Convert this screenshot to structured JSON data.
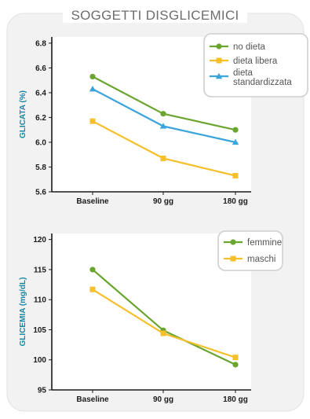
{
  "page": {
    "title": "SOGGETTI DISGLICEMICI"
  },
  "colors": {
    "green": "#6aa52f",
    "yellow": "#f6bf2c",
    "blue": "#3aa4dc",
    "axis_label": "#1b86a4",
    "tick_text": "#1c1c1c",
    "frame": "#cfcfcf",
    "panel": "#f2f2f2"
  },
  "chart_data": [
    {
      "type": "line",
      "title": "",
      "xlabel": "",
      "ylabel": "GLICATA (%)",
      "categories": [
        "Baseline",
        "90 gg",
        "180 gg"
      ],
      "ylim": [
        5.6,
        6.85
      ],
      "yticks": [
        "5.6",
        "5.8",
        "6.0",
        "6.2",
        "6.4",
        "6.6",
        "6.8"
      ],
      "grid": false,
      "legend_position": "top-right",
      "series": [
        {
          "name": "no dieta",
          "color": "#6aa52f",
          "marker": "circle",
          "values": [
            6.53,
            6.23,
            6.1
          ]
        },
        {
          "name": "dieta libera",
          "color": "#f6bf2c",
          "marker": "square",
          "values": [
            6.17,
            5.87,
            5.73
          ]
        },
        {
          "name": "dieta standardizzata",
          "legend_lines": [
            "dieta",
            "standardizzata"
          ],
          "color": "#3aa4dc",
          "marker": "triangle",
          "values": [
            6.43,
            6.13,
            6.0
          ]
        }
      ]
    },
    {
      "type": "line",
      "title": "",
      "xlabel": "",
      "ylabel": "GLICEMIA (mg/dL)",
      "categories": [
        "Baseline",
        "90 gg",
        "180 gg"
      ],
      "ylim": [
        95,
        121
      ],
      "yticks": [
        "95",
        "100",
        "105",
        "110",
        "115",
        "120"
      ],
      "grid": false,
      "legend_position": "top-right",
      "series": [
        {
          "name": "femmine",
          "color": "#6aa52f",
          "marker": "circle",
          "values": [
            115.0,
            104.9,
            99.2
          ]
        },
        {
          "name": "maschi",
          "color": "#f6bf2c",
          "marker": "square",
          "values": [
            111.7,
            104.4,
            100.4
          ]
        }
      ]
    }
  ]
}
